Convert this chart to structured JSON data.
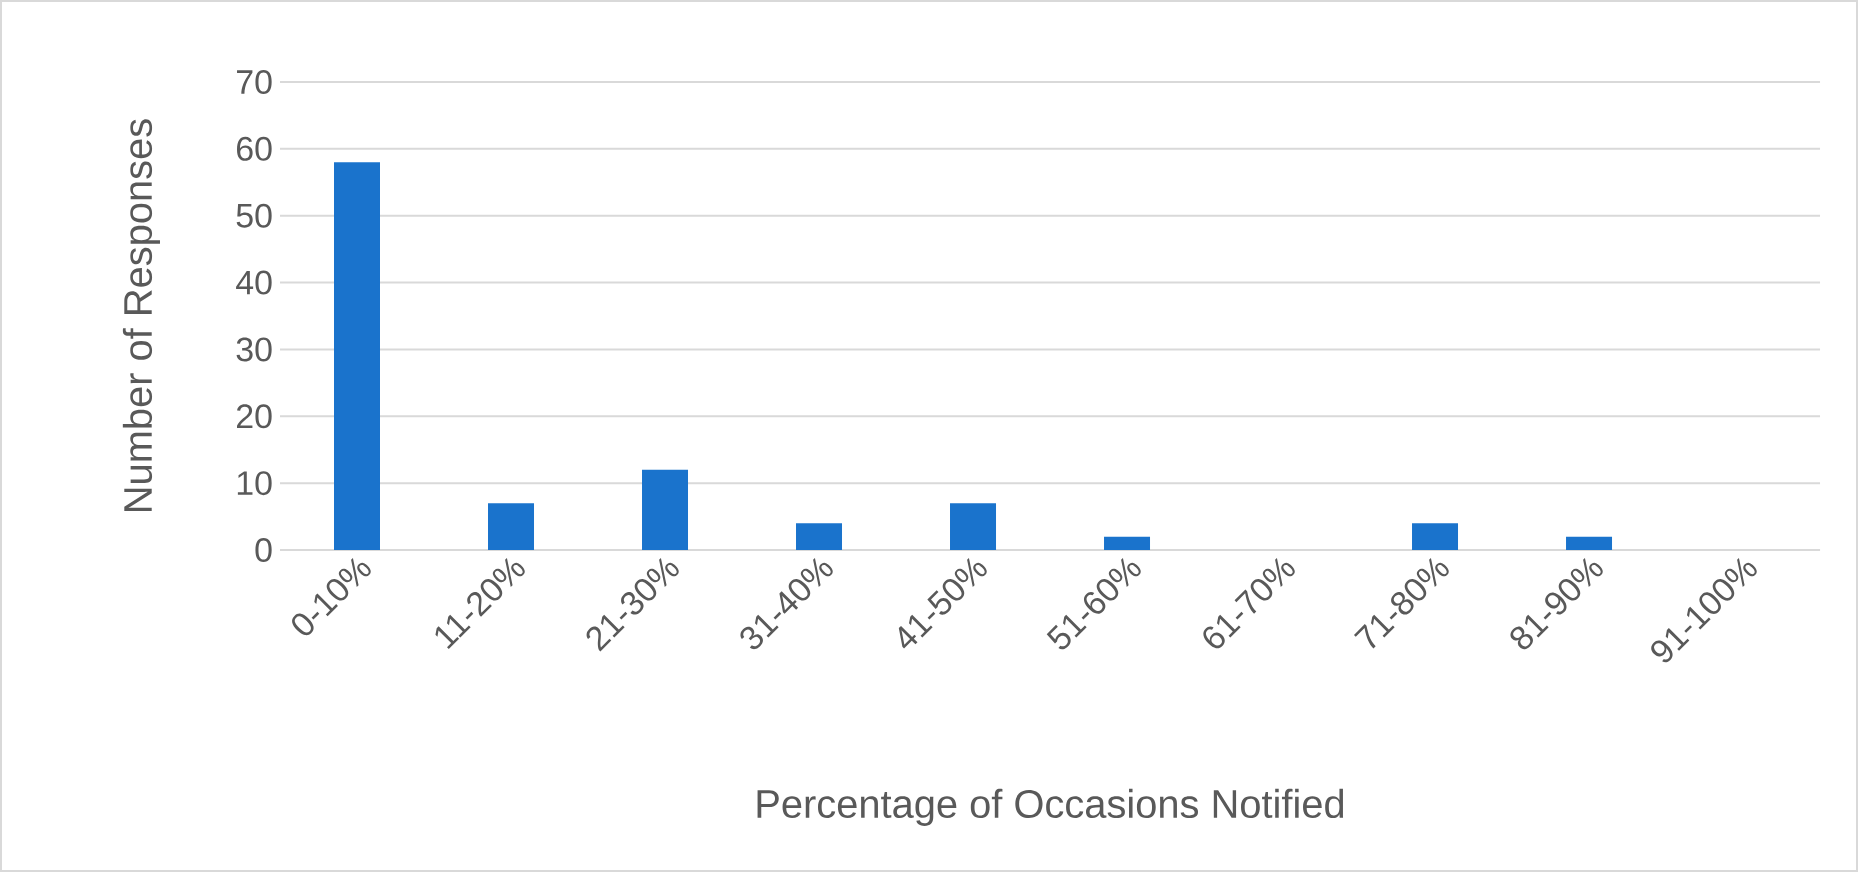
{
  "chart_data": {
    "type": "bar",
    "xlabel": "Percentage of Occasions Notified",
    "ylabel": "Number of Responses",
    "categories": [
      "0-10%",
      "11-20%",
      "21-30%",
      "31-40%",
      "41-50%",
      "51-60%",
      "61-70%",
      "71-80%",
      "81-90%",
      "91-100%"
    ],
    "values": [
      58,
      7,
      12,
      4,
      7,
      2,
      0,
      4,
      2,
      0
    ],
    "color": "#1a73cc",
    "ylim": [
      0,
      70
    ],
    "yticks": [
      0,
      10,
      20,
      30,
      40,
      50,
      60,
      70
    ],
    "grid": "y"
  }
}
